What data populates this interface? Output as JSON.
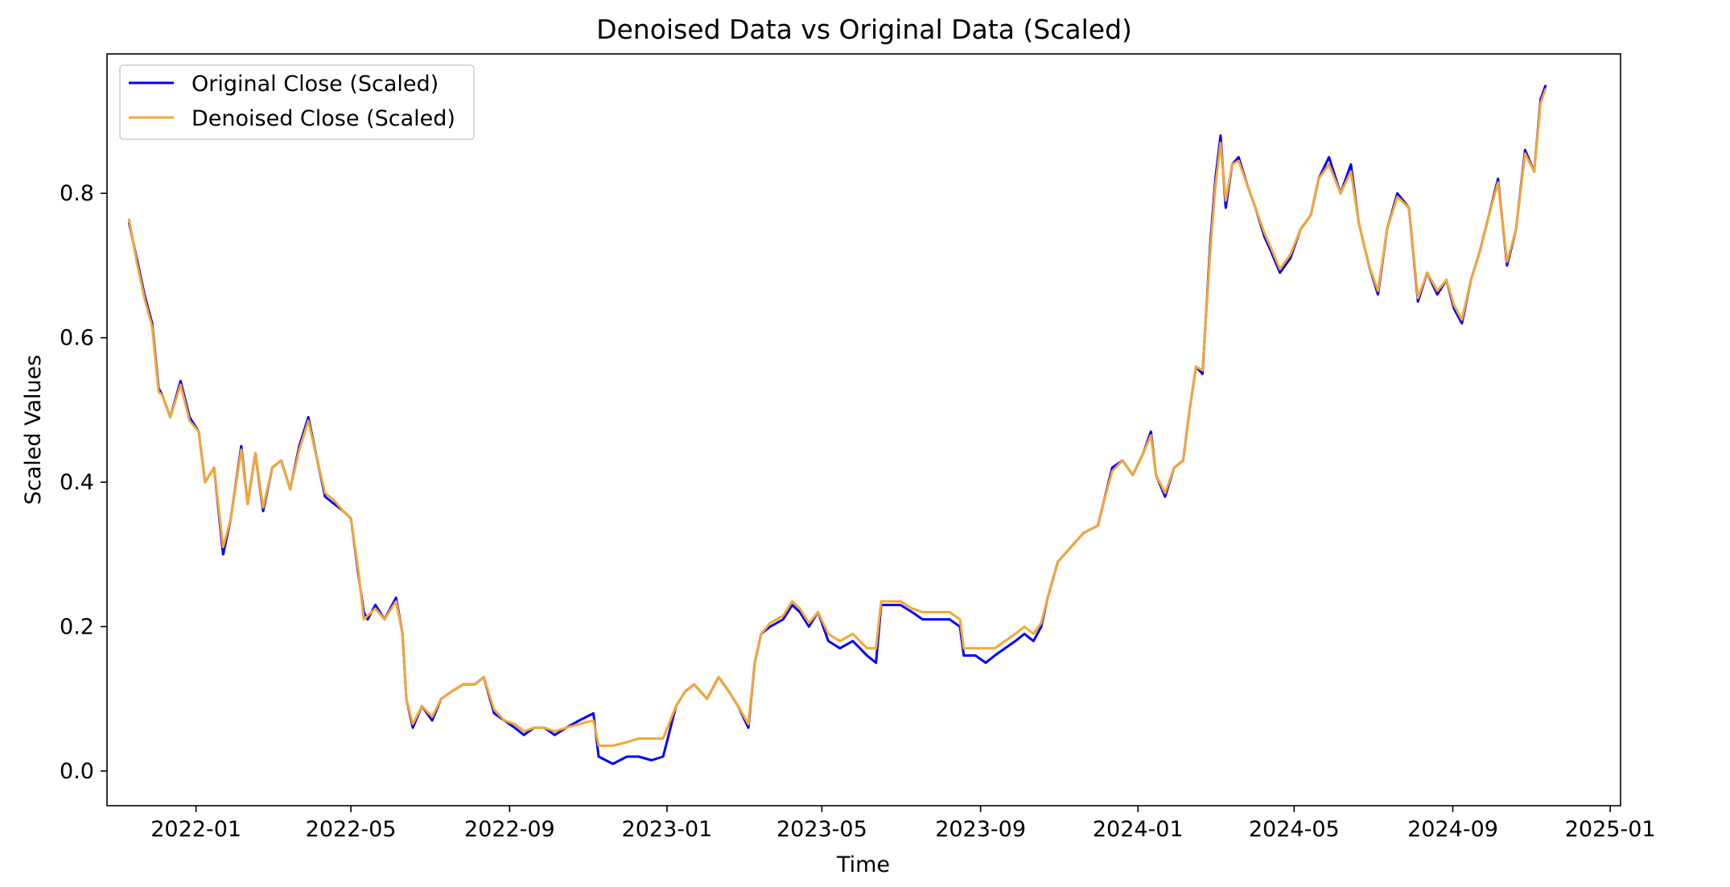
{
  "chart_data": {
    "type": "line",
    "title": "Denoised Data vs Original Data (Scaled)",
    "xlabel": "Time",
    "ylabel": "Scaled Values",
    "xlim": [
      "2021-10-24",
      "2025-01-09"
    ],
    "ylim": [
      -0.048,
      0.993
    ],
    "x_ticks": [
      "2022-01",
      "2022-05",
      "2022-09",
      "2023-01",
      "2023-05",
      "2023-09",
      "2024-01",
      "2024-05",
      "2024-09",
      "2025-01"
    ],
    "y_ticks": [
      "0.0",
      "0.2",
      "0.4",
      "0.6",
      "0.8"
    ],
    "y_tick_values": [
      0.0,
      0.2,
      0.4,
      0.6,
      0.8
    ],
    "grid": false,
    "legend_position": "upper left",
    "series": [
      {
        "name": "Original Close (Scaled)",
        "color": "#0000ff",
        "x": [
          "2021-11-10",
          "2021-11-16",
          "2021-11-22",
          "2021-11-28",
          "2021-12-03",
          "2021-12-06",
          "2021-12-12",
          "2021-12-20",
          "2021-12-27",
          "2022-01-03",
          "2022-01-08",
          "2022-01-15",
          "2022-01-22",
          "2022-01-28",
          "2022-02-05",
          "2022-02-10",
          "2022-02-16",
          "2022-02-22",
          "2022-03-01",
          "2022-03-08",
          "2022-03-15",
          "2022-03-22",
          "2022-03-29",
          "2022-04-05",
          "2022-04-11",
          "2022-04-18",
          "2022-04-25",
          "2022-05-01",
          "2022-05-07",
          "2022-05-11",
          "2022-05-14",
          "2022-05-20",
          "2022-05-27",
          "2022-06-05",
          "2022-06-10",
          "2022-06-13",
          "2022-06-18",
          "2022-06-25",
          "2022-07-03",
          "2022-07-10",
          "2022-07-18",
          "2022-07-27",
          "2022-08-05",
          "2022-08-12",
          "2022-08-20",
          "2022-08-28",
          "2022-09-05",
          "2022-09-12",
          "2022-09-20",
          "2022-09-28",
          "2022-10-06",
          "2022-10-15",
          "2022-10-25",
          "2022-11-05",
          "2022-11-09",
          "2022-11-20",
          "2022-12-01",
          "2022-12-10",
          "2022-12-20",
          "2022-12-29",
          "2023-01-08",
          "2023-01-15",
          "2023-01-22",
          "2023-02-01",
          "2023-02-10",
          "2023-02-18",
          "2023-02-25",
          "2023-03-05",
          "2023-03-10",
          "2023-03-15",
          "2023-03-22",
          "2023-04-01",
          "2023-04-08",
          "2023-04-14",
          "2023-04-21",
          "2023-04-28",
          "2023-05-06",
          "2023-05-15",
          "2023-05-25",
          "2023-06-05",
          "2023-06-12",
          "2023-06-16",
          "2023-06-22",
          "2023-07-01",
          "2023-07-10",
          "2023-07-18",
          "2023-07-28",
          "2023-08-08",
          "2023-08-16",
          "2023-08-19",
          "2023-08-28",
          "2023-09-05",
          "2023-09-12",
          "2023-09-20",
          "2023-09-28",
          "2023-10-05",
          "2023-10-12",
          "2023-10-18",
          "2023-10-23",
          "2023-10-31",
          "2023-11-10",
          "2023-11-20",
          "2023-12-01",
          "2023-12-05",
          "2023-12-12",
          "2023-12-20",
          "2023-12-28",
          "2024-01-05",
          "2024-01-11",
          "2024-01-15",
          "2024-01-22",
          "2024-01-29",
          "2024-02-05",
          "2024-02-10",
          "2024-02-15",
          "2024-02-20",
          "2024-02-26",
          "2024-03-01",
          "2024-03-05",
          "2024-03-09",
          "2024-03-14",
          "2024-03-19",
          "2024-03-26",
          "2024-04-01",
          "2024-04-08",
          "2024-04-13",
          "2024-04-20",
          "2024-04-28",
          "2024-05-06",
          "2024-05-14",
          "2024-05-20",
          "2024-05-28",
          "2024-06-06",
          "2024-06-14",
          "2024-06-20",
          "2024-06-28",
          "2024-07-05",
          "2024-07-12",
          "2024-07-20",
          "2024-07-29",
          "2024-08-05",
          "2024-08-12",
          "2024-08-20",
          "2024-08-27",
          "2024-09-02",
          "2024-09-08",
          "2024-09-15",
          "2024-09-22",
          "2024-09-29",
          "2024-10-06",
          "2024-10-13",
          "2024-10-20",
          "2024-10-27",
          "2024-11-03",
          "2024-11-08",
          "2024-11-12"
        ],
        "values": [
          0.76,
          0.71,
          0.66,
          0.62,
          0.53,
          0.52,
          0.49,
          0.54,
          0.49,
          0.47,
          0.4,
          0.42,
          0.3,
          0.35,
          0.45,
          0.37,
          0.44,
          0.36,
          0.42,
          0.43,
          0.39,
          0.45,
          0.49,
          0.43,
          0.38,
          0.37,
          0.36,
          0.35,
          0.27,
          0.22,
          0.21,
          0.23,
          0.21,
          0.24,
          0.19,
          0.1,
          0.06,
          0.09,
          0.07,
          0.1,
          0.11,
          0.12,
          0.12,
          0.13,
          0.08,
          0.07,
          0.06,
          0.05,
          0.06,
          0.06,
          0.05,
          0.06,
          0.07,
          0.08,
          0.02,
          0.01,
          0.02,
          0.02,
          0.015,
          0.02,
          0.09,
          0.11,
          0.12,
          0.1,
          0.13,
          0.11,
          0.09,
          0.06,
          0.15,
          0.19,
          0.2,
          0.21,
          0.23,
          0.22,
          0.2,
          0.22,
          0.18,
          0.17,
          0.18,
          0.16,
          0.15,
          0.23,
          0.23,
          0.23,
          0.22,
          0.21,
          0.21,
          0.21,
          0.2,
          0.16,
          0.16,
          0.15,
          0.16,
          0.17,
          0.18,
          0.19,
          0.18,
          0.2,
          0.24,
          0.29,
          0.31,
          0.33,
          0.34,
          0.37,
          0.42,
          0.43,
          0.41,
          0.44,
          0.47,
          0.41,
          0.38,
          0.42,
          0.43,
          0.5,
          0.56,
          0.55,
          0.73,
          0.82,
          0.88,
          0.78,
          0.84,
          0.85,
          0.81,
          0.78,
          0.74,
          0.72,
          0.69,
          0.71,
          0.75,
          0.77,
          0.82,
          0.85,
          0.8,
          0.84,
          0.76,
          0.7,
          0.66,
          0.75,
          0.8,
          0.78,
          0.65,
          0.69,
          0.66,
          0.68,
          0.64,
          0.62,
          0.68,
          0.72,
          0.77,
          0.82,
          0.7,
          0.75,
          0.86,
          0.83,
          0.93,
          0.95
        ]
      },
      {
        "name": "Denoised Close (Scaled)",
        "color": "#f5a733",
        "x": [
          "2021-11-10",
          "2021-11-16",
          "2021-11-22",
          "2021-11-28",
          "2021-12-03",
          "2021-12-06",
          "2021-12-12",
          "2021-12-20",
          "2021-12-27",
          "2022-01-03",
          "2022-01-08",
          "2022-01-15",
          "2022-01-22",
          "2022-01-28",
          "2022-02-05",
          "2022-02-10",
          "2022-02-16",
          "2022-02-22",
          "2022-03-01",
          "2022-03-08",
          "2022-03-15",
          "2022-03-22",
          "2022-03-29",
          "2022-04-05",
          "2022-04-11",
          "2022-04-18",
          "2022-04-25",
          "2022-05-01",
          "2022-05-07",
          "2022-05-11",
          "2022-05-14",
          "2022-05-20",
          "2022-05-27",
          "2022-06-05",
          "2022-06-10",
          "2022-06-13",
          "2022-06-18",
          "2022-06-25",
          "2022-07-03",
          "2022-07-10",
          "2022-07-18",
          "2022-07-27",
          "2022-08-05",
          "2022-08-12",
          "2022-08-20",
          "2022-08-28",
          "2022-09-05",
          "2022-09-12",
          "2022-09-20",
          "2022-09-28",
          "2022-10-06",
          "2022-10-15",
          "2022-10-25",
          "2022-11-05",
          "2022-11-09",
          "2022-11-20",
          "2022-12-01",
          "2022-12-10",
          "2022-12-20",
          "2022-12-29",
          "2023-01-08",
          "2023-01-15",
          "2023-01-22",
          "2023-02-01",
          "2023-02-10",
          "2023-02-18",
          "2023-02-25",
          "2023-03-05",
          "2023-03-10",
          "2023-03-15",
          "2023-03-22",
          "2023-04-01",
          "2023-04-08",
          "2023-04-14",
          "2023-04-21",
          "2023-04-28",
          "2023-05-06",
          "2023-05-15",
          "2023-05-25",
          "2023-06-05",
          "2023-06-12",
          "2023-06-16",
          "2023-06-22",
          "2023-07-01",
          "2023-07-10",
          "2023-07-18",
          "2023-07-28",
          "2023-08-08",
          "2023-08-16",
          "2023-08-19",
          "2023-08-28",
          "2023-09-05",
          "2023-09-12",
          "2023-09-20",
          "2023-09-28",
          "2023-10-05",
          "2023-10-12",
          "2023-10-18",
          "2023-10-23",
          "2023-10-31",
          "2023-11-10",
          "2023-11-20",
          "2023-12-01",
          "2023-12-05",
          "2023-12-12",
          "2023-12-20",
          "2023-12-28",
          "2024-01-05",
          "2024-01-11",
          "2024-01-15",
          "2024-01-22",
          "2024-01-29",
          "2024-02-05",
          "2024-02-10",
          "2024-02-15",
          "2024-02-20",
          "2024-02-26",
          "2024-03-01",
          "2024-03-05",
          "2024-03-09",
          "2024-03-14",
          "2024-03-19",
          "2024-03-26",
          "2024-04-01",
          "2024-04-08",
          "2024-04-13",
          "2024-04-20",
          "2024-04-28",
          "2024-05-06",
          "2024-05-14",
          "2024-05-20",
          "2024-05-28",
          "2024-06-06",
          "2024-06-14",
          "2024-06-20",
          "2024-06-28",
          "2024-07-05",
          "2024-07-12",
          "2024-07-20",
          "2024-07-29",
          "2024-08-05",
          "2024-08-12",
          "2024-08-20",
          "2024-08-27",
          "2024-09-02",
          "2024-09-08",
          "2024-09-15",
          "2024-09-22",
          "2024-09-29",
          "2024-10-06",
          "2024-10-13",
          "2024-10-20",
          "2024-10-27",
          "2024-11-03",
          "2024-11-08",
          "2024-11-12"
        ],
        "values": [
          0.765,
          0.705,
          0.655,
          0.615,
          0.525,
          0.52,
          0.49,
          0.535,
          0.485,
          0.47,
          0.4,
          0.42,
          0.31,
          0.35,
          0.445,
          0.37,
          0.44,
          0.365,
          0.42,
          0.43,
          0.39,
          0.445,
          0.485,
          0.43,
          0.385,
          0.375,
          0.36,
          0.35,
          0.275,
          0.21,
          0.215,
          0.225,
          0.21,
          0.235,
          0.19,
          0.1,
          0.065,
          0.09,
          0.075,
          0.1,
          0.11,
          0.12,
          0.12,
          0.13,
          0.085,
          0.07,
          0.065,
          0.055,
          0.06,
          0.06,
          0.055,
          0.06,
          0.065,
          0.07,
          0.035,
          0.035,
          0.04,
          0.045,
          0.045,
          0.045,
          0.09,
          0.11,
          0.12,
          0.1,
          0.13,
          0.11,
          0.09,
          0.065,
          0.15,
          0.19,
          0.205,
          0.215,
          0.235,
          0.225,
          0.205,
          0.22,
          0.19,
          0.18,
          0.19,
          0.17,
          0.17,
          0.235,
          0.235,
          0.235,
          0.225,
          0.22,
          0.22,
          0.22,
          0.21,
          0.17,
          0.17,
          0.17,
          0.17,
          0.18,
          0.19,
          0.2,
          0.19,
          0.205,
          0.24,
          0.29,
          0.31,
          0.33,
          0.34,
          0.37,
          0.415,
          0.43,
          0.41,
          0.44,
          0.465,
          0.41,
          0.385,
          0.42,
          0.43,
          0.5,
          0.56,
          0.555,
          0.72,
          0.81,
          0.87,
          0.79,
          0.84,
          0.845,
          0.81,
          0.78,
          0.745,
          0.725,
          0.695,
          0.715,
          0.75,
          0.77,
          0.82,
          0.84,
          0.8,
          0.83,
          0.76,
          0.7,
          0.665,
          0.75,
          0.795,
          0.78,
          0.655,
          0.69,
          0.665,
          0.68,
          0.645,
          0.625,
          0.68,
          0.72,
          0.77,
          0.815,
          0.705,
          0.75,
          0.855,
          0.83,
          0.925,
          0.945
        ]
      }
    ]
  }
}
